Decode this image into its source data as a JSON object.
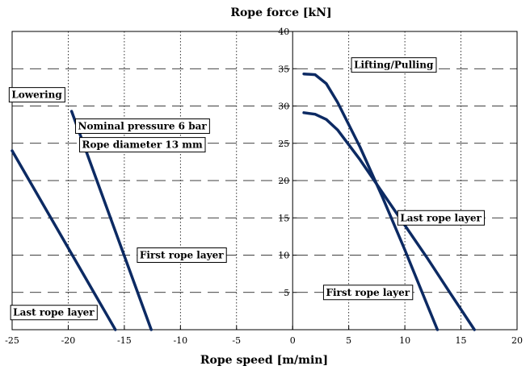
{
  "chart_data": {
    "type": "line",
    "xlabel": "Rope speed [m/min]",
    "ylabel": "Rope force [kN]",
    "xlim": [
      -25,
      20
    ],
    "ylim": [
      0,
      40
    ],
    "xticks": [
      -25,
      -20,
      -15,
      -10,
      -5,
      0,
      5,
      10,
      15,
      20
    ],
    "yticks": [
      5,
      10,
      15,
      20,
      25,
      30,
      35,
      40
    ],
    "grid": {
      "vertical": "dotted",
      "horizontal": "dashed"
    },
    "series_color": "#0c2a63",
    "series": [
      {
        "name": "Lowering - first rope layer",
        "x": [
          -19.7,
          -12.6
        ],
        "y": [
          29.3,
          0
        ]
      },
      {
        "name": "Lowering - last rope layer",
        "x": [
          -25,
          -15.8
        ],
        "y": [
          24,
          0
        ]
      },
      {
        "name": "Lifting/Pulling - first rope layer",
        "x": [
          1.0,
          2.0,
          3.0,
          4.0,
          6.0,
          8.0,
          10.0,
          12.0,
          12.9
        ],
        "y": [
          34.3,
          34.2,
          33.0,
          30.5,
          24.5,
          17.8,
          10.7,
          3.3,
          0
        ]
      },
      {
        "name": "Lifting/Pulling - last rope layer",
        "x": [
          1.0,
          2.0,
          3.0,
          4.0,
          6.0,
          8.0,
          10.0,
          12.0,
          14.0,
          16.2
        ],
        "y": [
          29.1,
          28.9,
          28.2,
          26.8,
          22.8,
          18.4,
          14.0,
          9.6,
          5.0,
          0
        ]
      }
    ],
    "annotations": [
      {
        "text": "Lifting/Pulling",
        "x": 9.0,
        "y": 35.5
      },
      {
        "text": "Lowering",
        "x": -22.8,
        "y": 31.5
      },
      {
        "text": "Nominal pressure 6 bar",
        "x": -13.4,
        "y": 27.3
      },
      {
        "text": "Rope diameter 13 mm",
        "x": -13.4,
        "y": 24.8
      },
      {
        "text": "First rope layer",
        "x": -9.9,
        "y": 10.0
      },
      {
        "text": "Last rope layer",
        "x": 13.2,
        "y": 15.0
      },
      {
        "text": "First rope layer",
        "x": 6.7,
        "y": 5.0
      },
      {
        "text": "Last rope layer",
        "x": -21.3,
        "y": 2.3
      }
    ]
  }
}
